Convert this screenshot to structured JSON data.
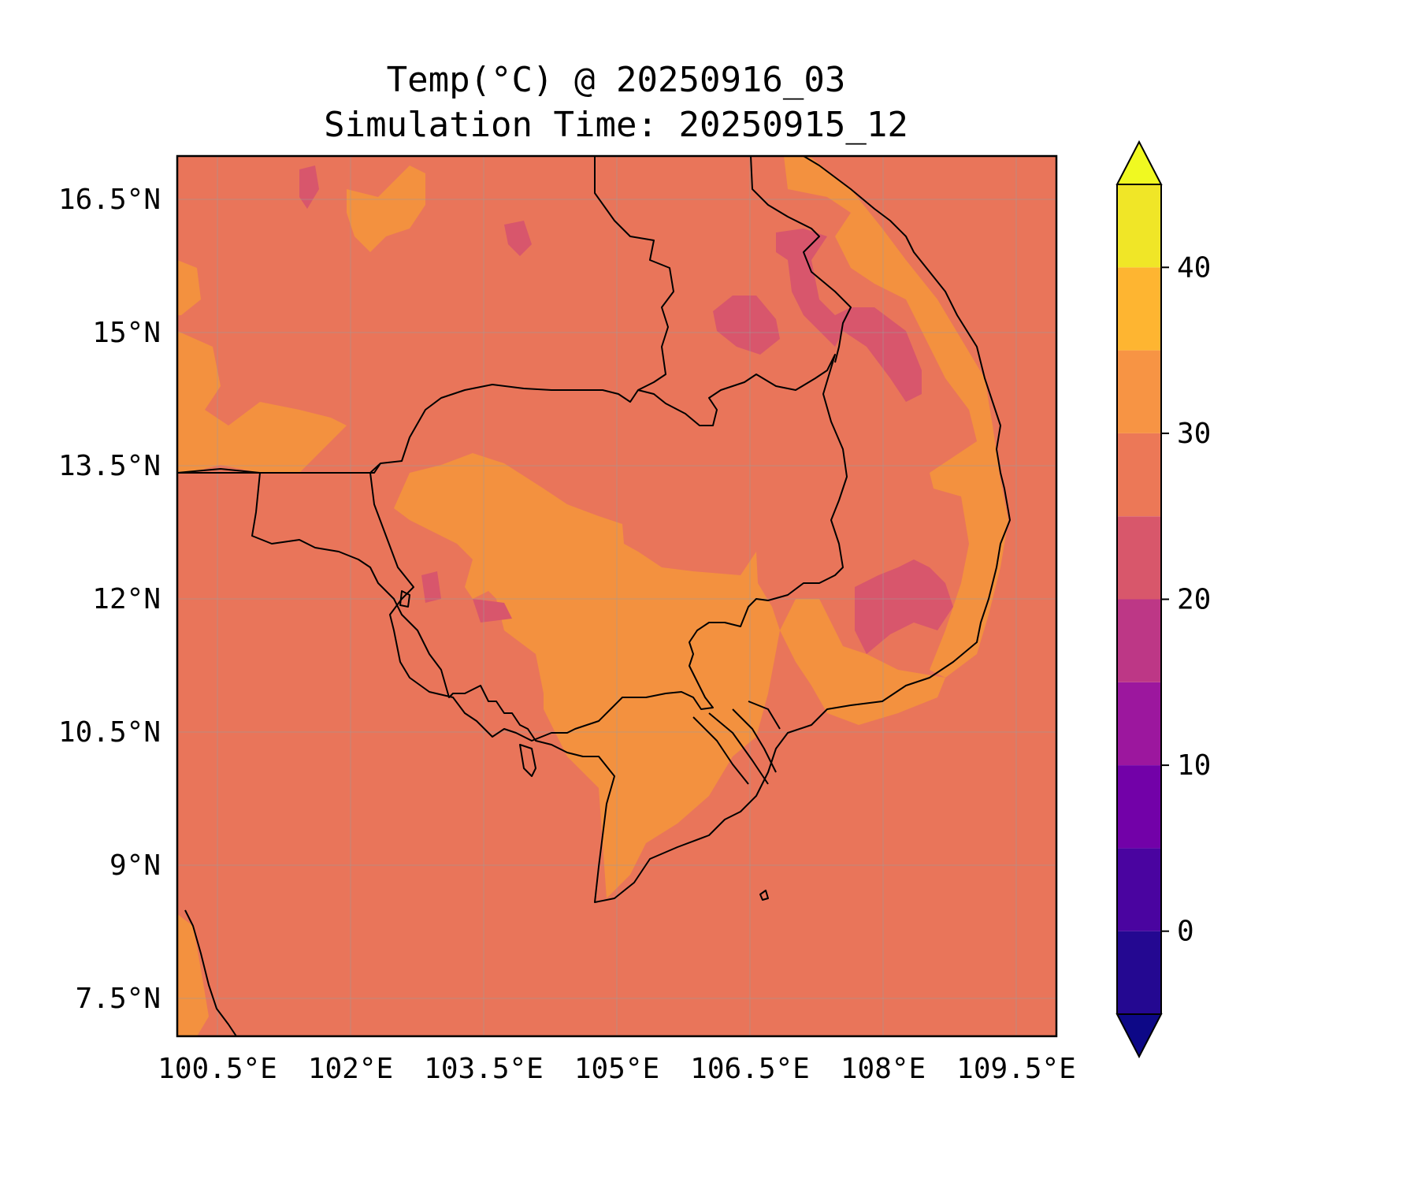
{
  "title": {
    "line1": "Temp(°C) @ 20250916_03",
    "line2": "Simulation Time: 20250915_12"
  },
  "map": {
    "extent_lon": [
      100.05,
      109.95
    ],
    "extent_lat": [
      7.05,
      16.95
    ],
    "x_ticks": [
      "100.5°E",
      "102°E",
      "103.5°E",
      "105°E",
      "106.5°E",
      "108°E",
      "109.5°E"
    ],
    "y_ticks": [
      "16.5°N",
      "15°N",
      "13.5°N",
      "12°N",
      "10.5°N",
      "9°N",
      "7.5°N"
    ],
    "gridlines": true,
    "background_level_range": [
      25,
      30
    ],
    "coastlines": true,
    "borders": true
  },
  "colorbar": {
    "levels": [
      -5,
      0,
      5,
      10,
      15,
      20,
      25,
      30,
      35,
      40,
      45
    ],
    "tick_labels": [
      "0",
      "10",
      "20",
      "30",
      "40"
    ],
    "tick_values": [
      0,
      10,
      20,
      30,
      40
    ],
    "colors": [
      "#240891",
      "#4a04a0",
      "#7201a8",
      "#9c179e",
      "#bd3786",
      "#d8576b",
      "#ec7857",
      "#f79444",
      "#feb531",
      "#f0e627"
    ],
    "under_color": "#0d0887",
    "over_color": "#f0f921",
    "extend": "both"
  }
}
